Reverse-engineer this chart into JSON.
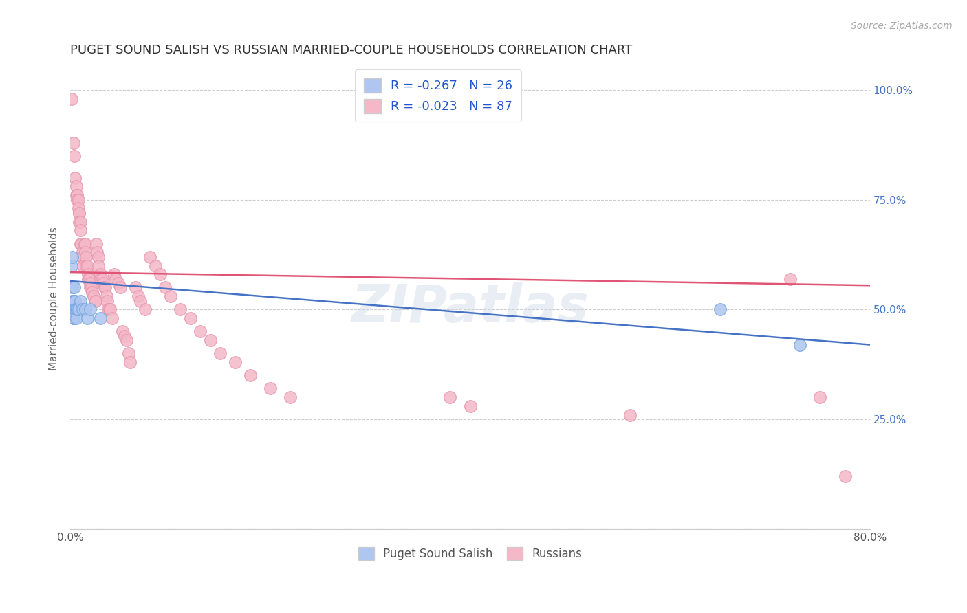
{
  "title": "PUGET SOUND SALISH VS RUSSIAN MARRIED-COUPLE HOUSEHOLDS CORRELATION CHART",
  "source": "Source: ZipAtlas.com",
  "ylabel": "Married-couple Households",
  "xlim": [
    0.0,
    0.8
  ],
  "ylim": [
    0.0,
    1.05
  ],
  "legend_entries": [
    {
      "label": "R = -0.267   N = 26",
      "color": "#aec6f0"
    },
    {
      "label": "R = -0.023   N = 87",
      "color": "#f4b8c8"
    }
  ],
  "legend_bottom": [
    {
      "label": "Puget Sound Salish",
      "color": "#aec6f0"
    },
    {
      "label": "Russians",
      "color": "#f4b8c8"
    }
  ],
  "blue_scatter": [
    [
      0.001,
      0.6
    ],
    [
      0.002,
      0.62
    ],
    [
      0.002,
      0.55
    ],
    [
      0.002,
      0.52
    ],
    [
      0.002,
      0.5
    ],
    [
      0.003,
      0.52
    ],
    [
      0.003,
      0.5
    ],
    [
      0.003,
      0.5
    ],
    [
      0.003,
      0.48
    ],
    [
      0.003,
      0.48
    ],
    [
      0.004,
      0.55
    ],
    [
      0.004,
      0.52
    ],
    [
      0.005,
      0.52
    ],
    [
      0.005,
      0.5
    ],
    [
      0.006,
      0.5
    ],
    [
      0.006,
      0.48
    ],
    [
      0.007,
      0.5
    ],
    [
      0.008,
      0.5
    ],
    [
      0.01,
      0.52
    ],
    [
      0.012,
      0.5
    ],
    [
      0.015,
      0.5
    ],
    [
      0.017,
      0.48
    ],
    [
      0.02,
      0.5
    ],
    [
      0.03,
      0.48
    ],
    [
      0.65,
      0.5
    ],
    [
      0.73,
      0.42
    ]
  ],
  "pink_scatter": [
    [
      0.001,
      0.98
    ],
    [
      0.003,
      0.88
    ],
    [
      0.004,
      0.85
    ],
    [
      0.005,
      0.8
    ],
    [
      0.006,
      0.78
    ],
    [
      0.006,
      0.76
    ],
    [
      0.007,
      0.76
    ],
    [
      0.007,
      0.75
    ],
    [
      0.008,
      0.75
    ],
    [
      0.008,
      0.73
    ],
    [
      0.009,
      0.72
    ],
    [
      0.009,
      0.72
    ],
    [
      0.009,
      0.7
    ],
    [
      0.01,
      0.7
    ],
    [
      0.01,
      0.68
    ],
    [
      0.01,
      0.65
    ],
    [
      0.011,
      0.65
    ],
    [
      0.012,
      0.63
    ],
    [
      0.012,
      0.62
    ],
    [
      0.013,
      0.62
    ],
    [
      0.013,
      0.6
    ],
    [
      0.014,
      0.65
    ],
    [
      0.015,
      0.65
    ],
    [
      0.015,
      0.63
    ],
    [
      0.016,
      0.62
    ],
    [
      0.016,
      0.6
    ],
    [
      0.017,
      0.6
    ],
    [
      0.018,
      0.58
    ],
    [
      0.018,
      0.57
    ],
    [
      0.019,
      0.57
    ],
    [
      0.02,
      0.56
    ],
    [
      0.02,
      0.55
    ],
    [
      0.021,
      0.55
    ],
    [
      0.022,
      0.54
    ],
    [
      0.022,
      0.54
    ],
    [
      0.023,
      0.53
    ],
    [
      0.025,
      0.52
    ],
    [
      0.025,
      0.52
    ],
    [
      0.026,
      0.65
    ],
    [
      0.027,
      0.63
    ],
    [
      0.028,
      0.62
    ],
    [
      0.028,
      0.6
    ],
    [
      0.03,
      0.58
    ],
    [
      0.03,
      0.57
    ],
    [
      0.032,
      0.57
    ],
    [
      0.033,
      0.56
    ],
    [
      0.034,
      0.55
    ],
    [
      0.035,
      0.55
    ],
    [
      0.036,
      0.53
    ],
    [
      0.037,
      0.52
    ],
    [
      0.038,
      0.5
    ],
    [
      0.039,
      0.5
    ],
    [
      0.04,
      0.5
    ],
    [
      0.042,
      0.48
    ],
    [
      0.044,
      0.58
    ],
    [
      0.045,
      0.57
    ],
    [
      0.048,
      0.56
    ],
    [
      0.05,
      0.55
    ],
    [
      0.052,
      0.45
    ],
    [
      0.054,
      0.44
    ],
    [
      0.056,
      0.43
    ],
    [
      0.058,
      0.4
    ],
    [
      0.06,
      0.38
    ],
    [
      0.065,
      0.55
    ],
    [
      0.068,
      0.53
    ],
    [
      0.07,
      0.52
    ],
    [
      0.075,
      0.5
    ],
    [
      0.08,
      0.62
    ],
    [
      0.085,
      0.6
    ],
    [
      0.09,
      0.58
    ],
    [
      0.095,
      0.55
    ],
    [
      0.1,
      0.53
    ],
    [
      0.11,
      0.5
    ],
    [
      0.12,
      0.48
    ],
    [
      0.13,
      0.45
    ],
    [
      0.14,
      0.43
    ],
    [
      0.15,
      0.4
    ],
    [
      0.165,
      0.38
    ],
    [
      0.18,
      0.35
    ],
    [
      0.2,
      0.32
    ],
    [
      0.22,
      0.3
    ],
    [
      0.38,
      0.3
    ],
    [
      0.4,
      0.28
    ],
    [
      0.56,
      0.26
    ],
    [
      0.72,
      0.57
    ],
    [
      0.75,
      0.3
    ],
    [
      0.775,
      0.12
    ]
  ],
  "blue_line": {
    "x0": 0.0,
    "y0": 0.565,
    "x1": 0.8,
    "y1": 0.42
  },
  "pink_line": {
    "x0": 0.0,
    "y0": 0.585,
    "x1": 0.8,
    "y1": 0.555
  },
  "blue_line_color": "#4472c4",
  "pink_line_color": "#e05575",
  "scatter_blue_color": "#aec6f0",
  "scatter_pink_color": "#f4b8c8",
  "scatter_blue_edge": "#7aa8e0",
  "scatter_pink_edge": "#e899b0",
  "watermark": "ZIPatlas",
  "background_color": "#ffffff",
  "grid_color": "#c8c8c8",
  "title_color": "#333333",
  "right_axis_color": "#4472c4",
  "title_fontsize": 13,
  "source_fontsize": 10
}
